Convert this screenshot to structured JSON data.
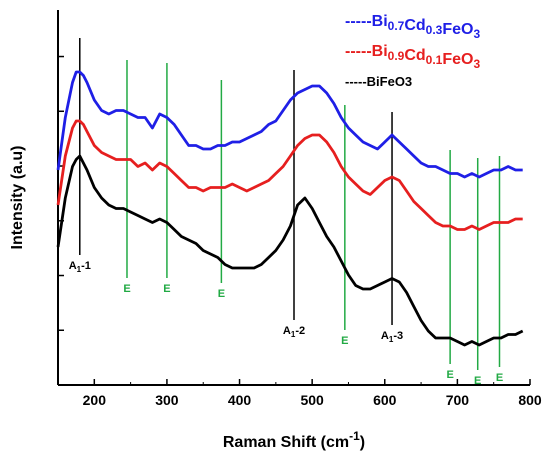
{
  "chart_data": {
    "type": "line",
    "title": "",
    "xlabel": "Raman Shift (cm",
    "xlabel_sup": "-1",
    "xlabel_close": ")",
    "ylabel": "Intensity (a.u)",
    "xlim": [
      150,
      800
    ],
    "ylim": [
      0,
      100
    ],
    "x_ticks": [
      200,
      300,
      400,
      500,
      600,
      700,
      800
    ],
    "y_ticks_count": 6,
    "y_tick_labels_shown": false,
    "grid": false,
    "legend_position": "top-right",
    "series": [
      {
        "name": "Bi0.7Cd0.3FeO3",
        "legend_parts": [
          {
            "t": "-----Bi",
            "sub": false
          },
          {
            "t": "0.7",
            "sub": true
          },
          {
            "t": "Cd",
            "sub": false
          },
          {
            "t": "0.3",
            "sub": true
          },
          {
            "t": "FeO",
            "sub": false
          },
          {
            "t": "3",
            "sub": true
          }
        ],
        "color": "#1f1fe6",
        "x": [
          150,
          160,
          170,
          175,
          180,
          185,
          190,
          200,
          210,
          220,
          230,
          240,
          250,
          260,
          270,
          280,
          290,
          300,
          310,
          320,
          330,
          340,
          350,
          360,
          370,
          380,
          390,
          400,
          410,
          420,
          430,
          440,
          450,
          460,
          470,
          480,
          490,
          500,
          510,
          520,
          530,
          540,
          550,
          560,
          570,
          580,
          590,
          600,
          610,
          620,
          630,
          640,
          650,
          660,
          670,
          680,
          690,
          700,
          710,
          720,
          730,
          740,
          750,
          760,
          770,
          780,
          790
        ],
        "y": [
          60,
          75,
          85,
          88,
          88,
          87,
          85,
          80,
          77,
          76,
          77,
          77,
          76,
          75,
          75,
          72,
          76,
          75,
          73,
          70,
          67,
          67,
          66,
          66,
          67,
          67,
          68,
          68,
          69,
          70,
          71,
          73,
          74,
          77,
          80,
          82,
          83,
          84,
          84,
          82,
          79,
          75,
          72,
          70,
          68,
          67,
          66,
          68,
          70,
          68,
          66,
          64,
          62,
          61,
          61,
          60,
          59,
          59,
          58,
          59,
          58,
          59,
          60,
          60,
          61,
          60,
          60
        ]
      },
      {
        "name": "Bi0.9Cd0.1FeO3",
        "legend_parts": [
          {
            "t": "-----Bi",
            "sub": false
          },
          {
            "t": "0.9",
            "sub": true
          },
          {
            "t": "Cd",
            "sub": false
          },
          {
            "t": "0.1",
            "sub": true
          },
          {
            "t": "FeO",
            "sub": false
          },
          {
            "t": "3",
            "sub": true
          }
        ],
        "color": "#e61f1f",
        "x": [
          150,
          160,
          170,
          175,
          180,
          185,
          190,
          200,
          210,
          220,
          230,
          240,
          250,
          260,
          270,
          280,
          290,
          300,
          310,
          320,
          330,
          340,
          350,
          360,
          370,
          380,
          390,
          400,
          410,
          420,
          430,
          440,
          450,
          460,
          470,
          480,
          490,
          500,
          510,
          520,
          530,
          540,
          550,
          560,
          570,
          580,
          590,
          600,
          610,
          620,
          630,
          640,
          650,
          660,
          670,
          680,
          690,
          700,
          710,
          720,
          730,
          740,
          750,
          760,
          770,
          780,
          790
        ],
        "y": [
          50,
          64,
          72,
          74,
          74,
          73,
          71,
          67,
          65,
          64,
          63,
          63,
          63,
          61,
          62,
          60,
          62,
          61,
          59,
          57,
          55,
          55,
          54,
          55,
          55,
          55,
          56,
          55,
          54,
          55,
          56,
          57,
          59,
          61,
          64,
          67,
          69,
          70,
          70,
          68,
          65,
          61,
          58,
          56,
          54,
          53,
          55,
          57,
          58,
          57,
          54,
          51,
          49,
          47,
          45,
          44,
          44,
          43,
          43,
          44,
          43,
          44,
          45,
          45,
          45,
          46,
          46
        ]
      },
      {
        "name": "BiFeO3",
        "legend_parts": [
          {
            "t": "-----BiFeO3",
            "sub": false
          }
        ],
        "color": "#000000",
        "x": [
          150,
          160,
          170,
          175,
          180,
          185,
          190,
          200,
          210,
          220,
          230,
          240,
          250,
          260,
          270,
          280,
          290,
          300,
          310,
          320,
          330,
          340,
          350,
          360,
          370,
          380,
          390,
          400,
          410,
          420,
          430,
          440,
          450,
          460,
          470,
          480,
          490,
          500,
          510,
          520,
          530,
          540,
          550,
          560,
          570,
          580,
          590,
          600,
          610,
          620,
          630,
          640,
          650,
          660,
          670,
          680,
          690,
          700,
          710,
          720,
          730,
          740,
          750,
          760,
          770,
          780,
          790
        ],
        "y": [
          38,
          52,
          61,
          63,
          64,
          62,
          60,
          55,
          52,
          50,
          49,
          49,
          48,
          47,
          46,
          45,
          46,
          45,
          43,
          41,
          40,
          39,
          37,
          36,
          35,
          33,
          32,
          32,
          32,
          32,
          33,
          35,
          37,
          40,
          44,
          50,
          52,
          49,
          45,
          41,
          38,
          34,
          30,
          27,
          26,
          26,
          27,
          28,
          29,
          28,
          25,
          21,
          17,
          14,
          12,
          12,
          12,
          11,
          10,
          11,
          10,
          11,
          12,
          12,
          13,
          13,
          14
        ]
      }
    ],
    "mode_lines": [
      {
        "x": 180,
        "label": "A",
        "sub": "1",
        "suffix": "-1",
        "color": "#000000"
      },
      {
        "x": 245,
        "label": "E",
        "color": "#22aa44"
      },
      {
        "x": 300,
        "label": "E",
        "color": "#22aa44"
      },
      {
        "x": 375,
        "label": "E",
        "color": "#22aa44"
      },
      {
        "x": 475,
        "label": "A",
        "sub": "1",
        "suffix": "-2",
        "color": "#000000"
      },
      {
        "x": 545,
        "label": "E",
        "color": "#22aa44"
      },
      {
        "x": 610,
        "label": "A",
        "sub": "1",
        "suffix": "-3",
        "color": "#000000"
      },
      {
        "x": 690,
        "label": "E",
        "color": "#22aa44"
      },
      {
        "x": 728,
        "label": "E",
        "color": "#22aa44"
      },
      {
        "x": 758,
        "label": "E",
        "color": "#22aa44"
      }
    ]
  }
}
